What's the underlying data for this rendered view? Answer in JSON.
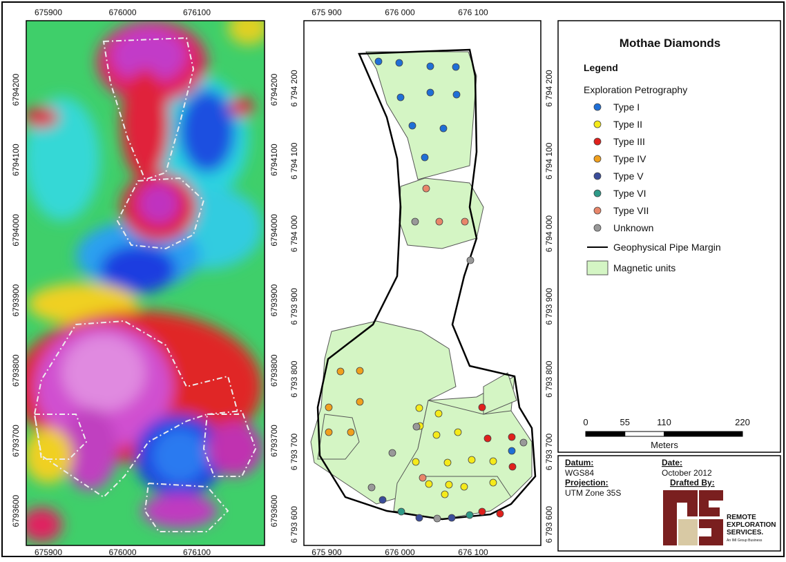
{
  "left_map": {
    "xticks": [
      675900,
      676000,
      676100
    ],
    "yticks": [
      6794200,
      6794100,
      6794000,
      6793900,
      6793800,
      6793700,
      6793600
    ]
  },
  "right_map": {
    "xticks": [
      {
        "value": 675900,
        "label": "675 900"
      },
      {
        "value": 676000,
        "label": "676 000"
      },
      {
        "value": 676100,
        "label": "676 100"
      }
    ],
    "yticks": [
      {
        "value": 6794200,
        "label": "6 794 200"
      },
      {
        "value": 6794100,
        "label": "6 794 100"
      },
      {
        "value": 6794000,
        "label": "6 794 000"
      },
      {
        "value": 6793900,
        "label": "6 793 900"
      },
      {
        "value": 6793800,
        "label": "6 793 800"
      },
      {
        "value": 6793700,
        "label": "6 793 700"
      },
      {
        "value": 6793600,
        "label": "6 793 600"
      }
    ]
  },
  "legend": {
    "title": "Mothae Diamonds",
    "heading": "Legend",
    "group": "Exploration Petrography",
    "items": [
      {
        "label": "Type I",
        "color": "#1f6fd6"
      },
      {
        "label": "Type II",
        "color": "#f5ea1a"
      },
      {
        "label": "Type III",
        "color": "#e0201c"
      },
      {
        "label": "Type IV",
        "color": "#f0a01e"
      },
      {
        "label": "Type V",
        "color": "#3a4d9a"
      },
      {
        "label": "Type VI",
        "color": "#2e9a88"
      },
      {
        "label": "Type VII",
        "color": "#e8866a"
      },
      {
        "label": "Unknown",
        "color": "#999999"
      }
    ],
    "line_label": "Geophysical Pipe Margin",
    "area_label": "Magnetic units",
    "area_color": "#d4f5c4"
  },
  "scale_bar": {
    "ticks": [
      0,
      55,
      110,
      220
    ],
    "unit": "Meters"
  },
  "info": {
    "datum_label": "Datum:",
    "datum": "WGS84",
    "projection_label": "Projection:",
    "projection": "UTM Zone 35S",
    "date_label": "Date:",
    "date": "October 2012",
    "drafted_label": "Drafted By:",
    "logo": [
      "REMOTE",
      "EXPLORATION",
      "SERVICES."
    ],
    "logo_sub": "An IMI Group Business"
  }
}
